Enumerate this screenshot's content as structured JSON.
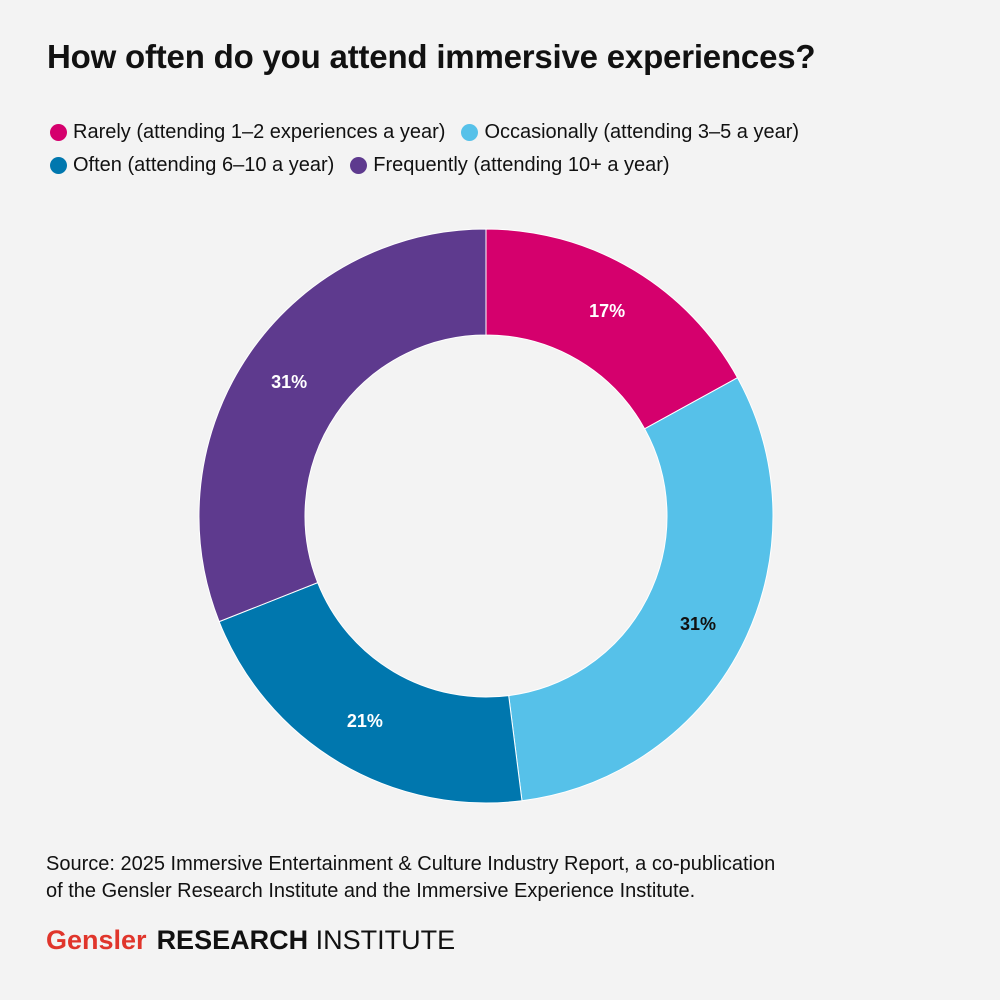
{
  "chart_data": {
    "type": "pie",
    "title": "How often do you attend immersive experiences?",
    "series": [
      {
        "name": "Rarely (attending 1–2 experiences a year)",
        "value": 17,
        "label": "17%",
        "color": "#d5006d",
        "label_color": "#ffffff"
      },
      {
        "name": "Occasionally (attending 3–5 a year)",
        "value": 31,
        "label": "31%",
        "color": "#56c1e9",
        "label_color": "#111111"
      },
      {
        "name": "Often (attending 6–10 a year)",
        "value": 21,
        "label": "21%",
        "color": "#0077ae",
        "label_color": "#ffffff"
      },
      {
        "name": "Frequently (attending 10+ a year)",
        "value": 31,
        "label": "31%",
        "color": "#5e3a8e",
        "label_color": "#ffffff"
      }
    ],
    "legend_position": "top-left",
    "style": "donut"
  },
  "source": {
    "line1": "Source: 2025 Immersive Entertainment & Culture Industry Report, a co-publication",
    "line2": "of the Gensler Research Institute and the Immersive Experience Institute."
  },
  "brand": {
    "gensler": "Gensler",
    "research": "RESEARCH",
    "institute": "INSTITUTE"
  },
  "colors": {
    "background": "#f3f3f3",
    "brand_red": "#e0352b"
  }
}
